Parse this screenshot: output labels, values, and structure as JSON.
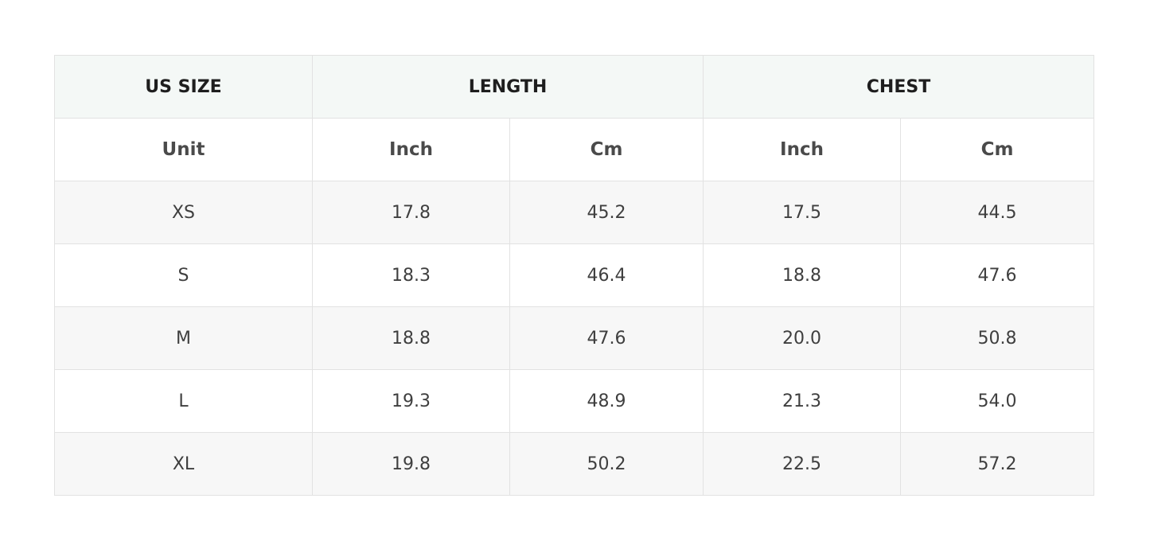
{
  "header": {
    "size": "US SIZE",
    "length": "LENGTH",
    "chest": "CHEST"
  },
  "units": [
    "Unit",
    "Inch",
    "Cm",
    "Inch",
    "Cm"
  ],
  "rows": [
    [
      "XS",
      "17.8",
      "45.2",
      "17.5",
      "44.5"
    ],
    [
      "S",
      "18.3",
      "46.4",
      "18.8",
      "47.6"
    ],
    [
      "M",
      "18.8",
      "47.6",
      "20.0",
      "50.8"
    ],
    [
      "L",
      "19.3",
      "48.9",
      "21.3",
      "54.0"
    ],
    [
      "XL",
      "19.8",
      "50.2",
      "22.5",
      "57.2"
    ]
  ]
}
